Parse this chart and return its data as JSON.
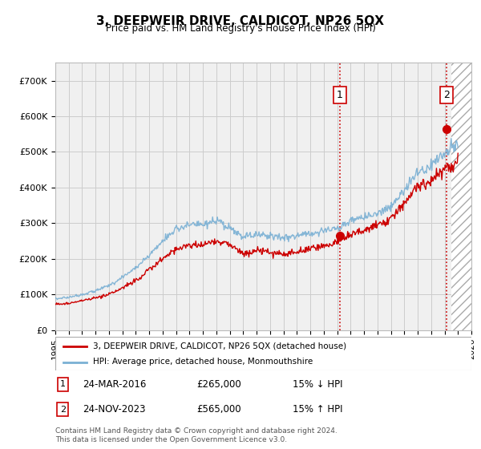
{
  "title": "3, DEEPWEIR DRIVE, CALDICOT, NP26 5QX",
  "subtitle": "Price paid vs. HM Land Registry's House Price Index (HPI)",
  "ylim": [
    0,
    750000
  ],
  "yticks": [
    0,
    100000,
    200000,
    300000,
    400000,
    500000,
    600000,
    700000
  ],
  "ytick_labels": [
    "£0",
    "£100K",
    "£200K",
    "£300K",
    "£400K",
    "£500K",
    "£600K",
    "£700K"
  ],
  "xlim_start": 1995,
  "xlim_end": 2026,
  "marker1_year": 2016.2,
  "marker1_value": 265000,
  "marker1_label": "1",
  "marker1_date": "24-MAR-2016",
  "marker1_price": "£265,000",
  "marker1_rel": "15% ↓ HPI",
  "marker2_year": 2024.15,
  "marker2_value": 565000,
  "marker2_label": "2",
  "marker2_date": "24-NOV-2023",
  "marker2_price": "£565,000",
  "marker2_rel": "15% ↑ HPI",
  "line_red_color": "#cc0000",
  "line_blue_color": "#7ab0d4",
  "grid_color": "#cccccc",
  "bg_color": "#f0f0f0",
  "hatch_start": 2024.5,
  "legend1_label": "3, DEEPWEIR DRIVE, CALDICOT, NP26 5QX (detached house)",
  "legend2_label": "HPI: Average price, detached house, Monmouthshire",
  "footer": "Contains HM Land Registry data © Crown copyright and database right 2024.\nThis data is licensed under the Open Government Licence v3.0.",
  "hpi_years": [
    1995,
    1996,
    1997,
    1998,
    1999,
    2000,
    2001,
    2002,
    2003,
    2004,
    2005,
    2006,
    2007,
    2008,
    2009,
    2010,
    2011,
    2012,
    2013,
    2014,
    2015,
    2016,
    2017,
    2018,
    2019,
    2020,
    2021,
    2022,
    2023,
    2024,
    2025
  ],
  "hpi_values": [
    88000,
    92000,
    100000,
    110000,
    125000,
    148000,
    175000,
    210000,
    250000,
    285000,
    295000,
    295000,
    305000,
    285000,
    260000,
    270000,
    265000,
    260000,
    265000,
    272000,
    278000,
    285000,
    305000,
    318000,
    328000,
    345000,
    395000,
    440000,
    465000,
    495000,
    520000
  ],
  "red_years": [
    1995,
    1996,
    1997,
    1998,
    1999,
    2000,
    2001,
    2002,
    2003,
    2004,
    2005,
    2006,
    2007,
    2008,
    2009,
    2010,
    2011,
    2012,
    2013,
    2014,
    2015,
    2016,
    2017,
    2018,
    2019,
    2020,
    2021,
    2022,
    2023,
    2024,
    2025
  ],
  "red_values": [
    72000,
    75000,
    82000,
    90000,
    100000,
    118000,
    140000,
    168000,
    200000,
    228000,
    238000,
    240000,
    252000,
    238000,
    215000,
    222000,
    218000,
    213000,
    218000,
    228000,
    235000,
    248000,
    268000,
    280000,
    295000,
    312000,
    358000,
    400000,
    420000,
    450000,
    480000
  ]
}
